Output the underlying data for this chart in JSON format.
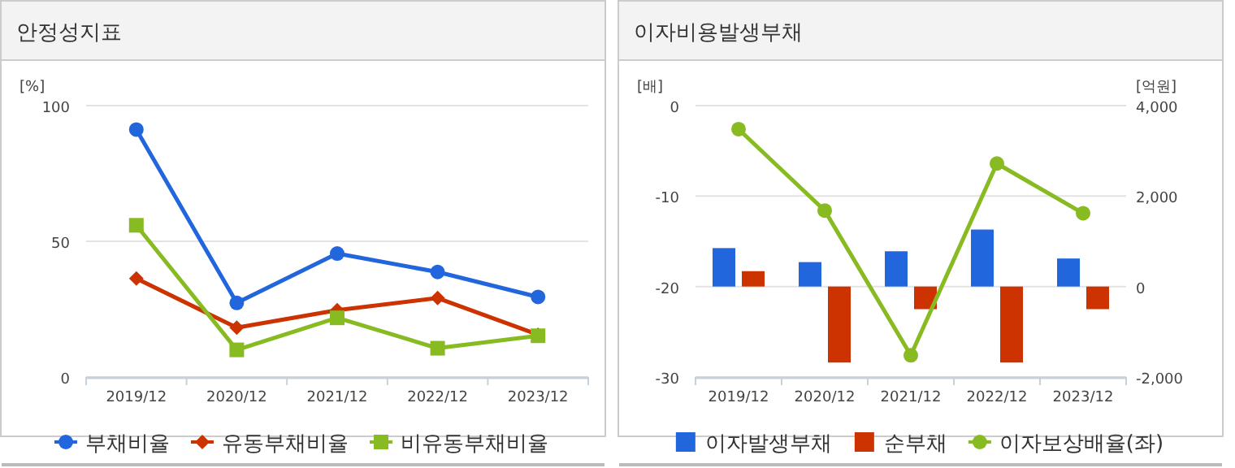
{
  "chart_data": [
    {
      "type": "line",
      "title": "안정성지표",
      "ylabel": "[%]",
      "categories": [
        "2019/12",
        "2020/12",
        "2021/12",
        "2022/12",
        "2023/12"
      ],
      "ylim": [
        0,
        100
      ],
      "yticks": [
        0,
        50,
        100
      ],
      "grid": "y",
      "legend": "bottom",
      "series": [
        {
          "name": "부채비율",
          "color": "#2266dd",
          "marker": "circle",
          "values": [
            91.2,
            27.3,
            45.5,
            38.7,
            29.5
          ]
        },
        {
          "name": "유동부채비율",
          "color": "#cc3300",
          "marker": "diamond",
          "values": [
            36.3,
            18.2,
            24.6,
            29.1,
            15.6
          ]
        },
        {
          "name": "비유동부채비율",
          "color": "#88bb22",
          "marker": "square",
          "values": [
            55.9,
            10,
            21.8,
            10.6,
            15.2
          ]
        }
      ]
    },
    {
      "type": "bar",
      "title": "이자비용발생부채",
      "ylabel": "[배]",
      "y2label": "[억원]",
      "categories": [
        "2019/12",
        "2020/12",
        "2021/12",
        "2022/12",
        "2023/12"
      ],
      "ylim": [
        -30,
        0
      ],
      "yticks": [
        -30,
        -20,
        -10,
        0
      ],
      "y2lim": [
        -2000,
        4000
      ],
      "y2ticks": [
        {
          "value": -2000,
          "label": "-2,000"
        },
        {
          "value": 0,
          "label": "0"
        },
        {
          "value": 2000,
          "label": "2,000"
        },
        {
          "value": 4000,
          "label": "4,000"
        }
      ],
      "grid": "y",
      "legend": "bottom",
      "series": [
        {
          "name": "이자발생부채",
          "color": "#2266dd",
          "axis": "y2",
          "values": [
            850,
            540,
            780,
            1260,
            620
          ]
        },
        {
          "name": "순부채",
          "color": "#cc3300",
          "axis": "y2",
          "values": [
            340,
            -1680,
            -500,
            -1680,
            -500
          ]
        },
        {
          "name": "이자보상배율(좌)",
          "type": "line",
          "color": "#88bb22",
          "marker": "circle",
          "values": [
            -2.6,
            -11.6,
            -27.6,
            -6.4,
            -11.9
          ]
        }
      ]
    }
  ]
}
